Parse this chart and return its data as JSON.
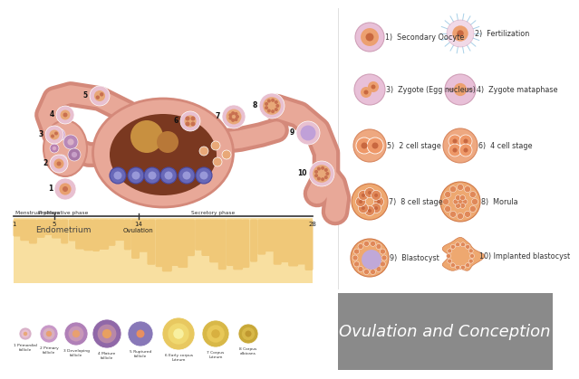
{
  "bg_color": "#ffffff",
  "title": "Ovulation and Conception",
  "title_bg": "#8a8a8a",
  "title_color": "#ffffff",
  "title_fontsize": 13,
  "right_panel_labels": [
    "1)  Secondary Oocyte",
    "2)  Fertilization",
    "3)  Zygote (Egg nucleus)",
    "4)  Zygote mataphase",
    "5)  2 cell stage",
    "6)  4 cell stage",
    "7)  8 cell stage",
    "8)  Morula",
    "9)  Blastocyst",
    "10) Implanted blastocyst"
  ],
  "uterus_color": "#e8a898",
  "uterus_dark": "#d4897a",
  "cavity_color": "#7a3820",
  "ovary_color": "#e8a898",
  "endometrium_color": "#f0c878",
  "endometrium_bg": "#f8dfa0",
  "follicle_purple_outer": "#c8a0c8",
  "follicle_purple_inner": "#e8c0d0",
  "blue_cell_color": "#7070c8",
  "blue_cell_inner": "#a0a0e0"
}
